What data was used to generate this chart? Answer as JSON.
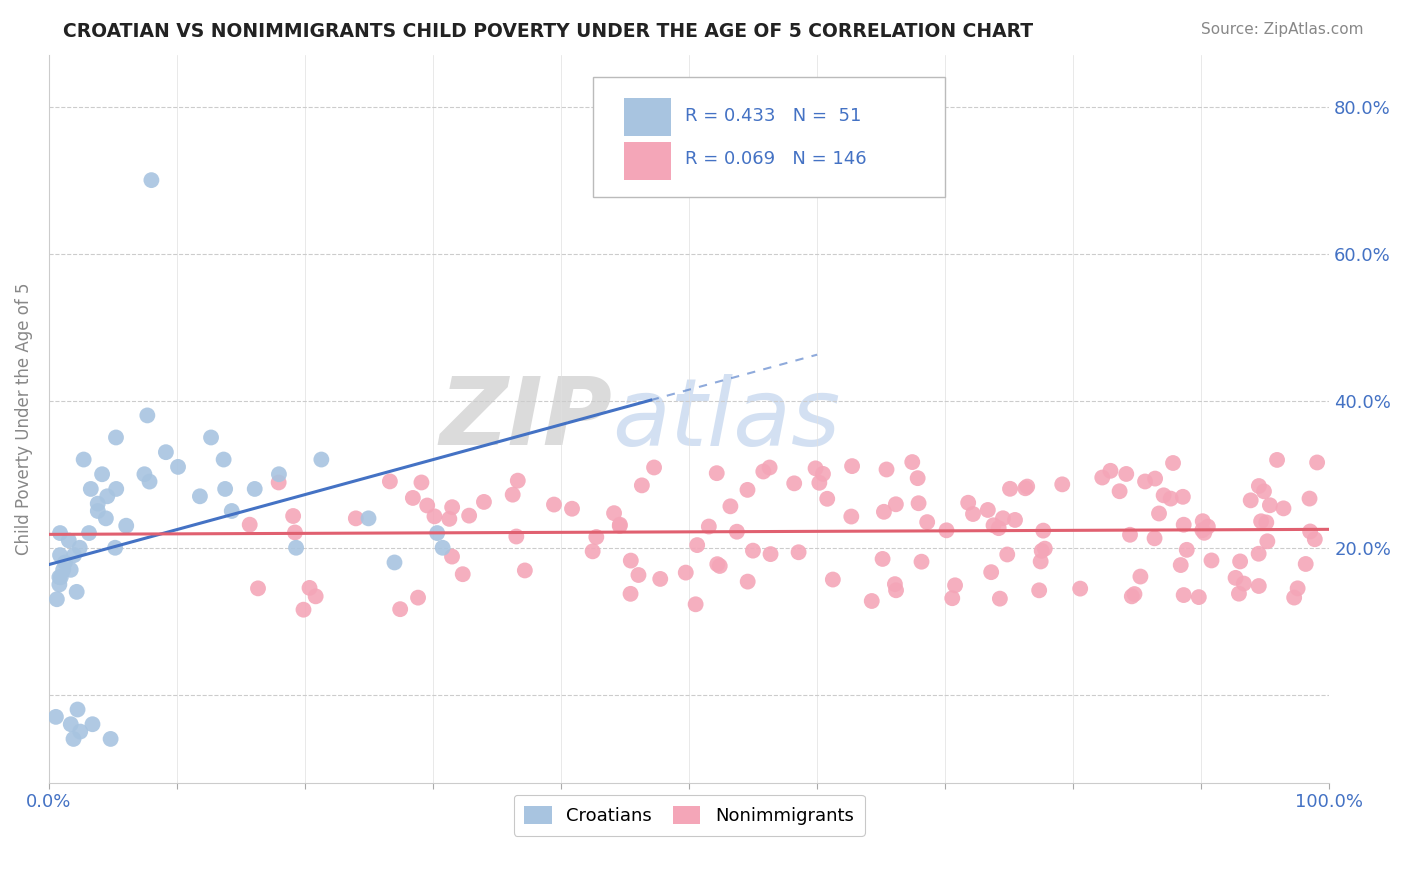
{
  "title": "CROATIAN VS NONIMMIGRANTS CHILD POVERTY UNDER THE AGE OF 5 CORRELATION CHART",
  "source": "Source: ZipAtlas.com",
  "ylabel": "Child Poverty Under the Age of 5",
  "croatian_R": 0.433,
  "croatian_N": 51,
  "nonimmigrant_R": 0.069,
  "nonimmigrant_N": 146,
  "croatian_color": "#a8c4e0",
  "nonimmigrant_color": "#f4a6b8",
  "trendline_croatian_color": "#4472c4",
  "trendline_nonimmigrant_color": "#e06070",
  "legend_text_color": "#4472c4",
  "background_color": "#ffffff",
  "grid_color": "#cccccc",
  "xlim": [
    0.0,
    1.0
  ],
  "ylim": [
    -0.12,
    0.87
  ],
  "yticks": [
    0.0,
    0.2,
    0.4,
    0.6,
    0.8
  ],
  "ytick_labels_right": [
    "",
    "20.0%",
    "40.0%",
    "60.0%",
    "80.0%"
  ],
  "xtick_labels": [
    "0.0%",
    "",
    "",
    "",
    "",
    "",
    "",
    "",
    "",
    "",
    "100.0%"
  ]
}
